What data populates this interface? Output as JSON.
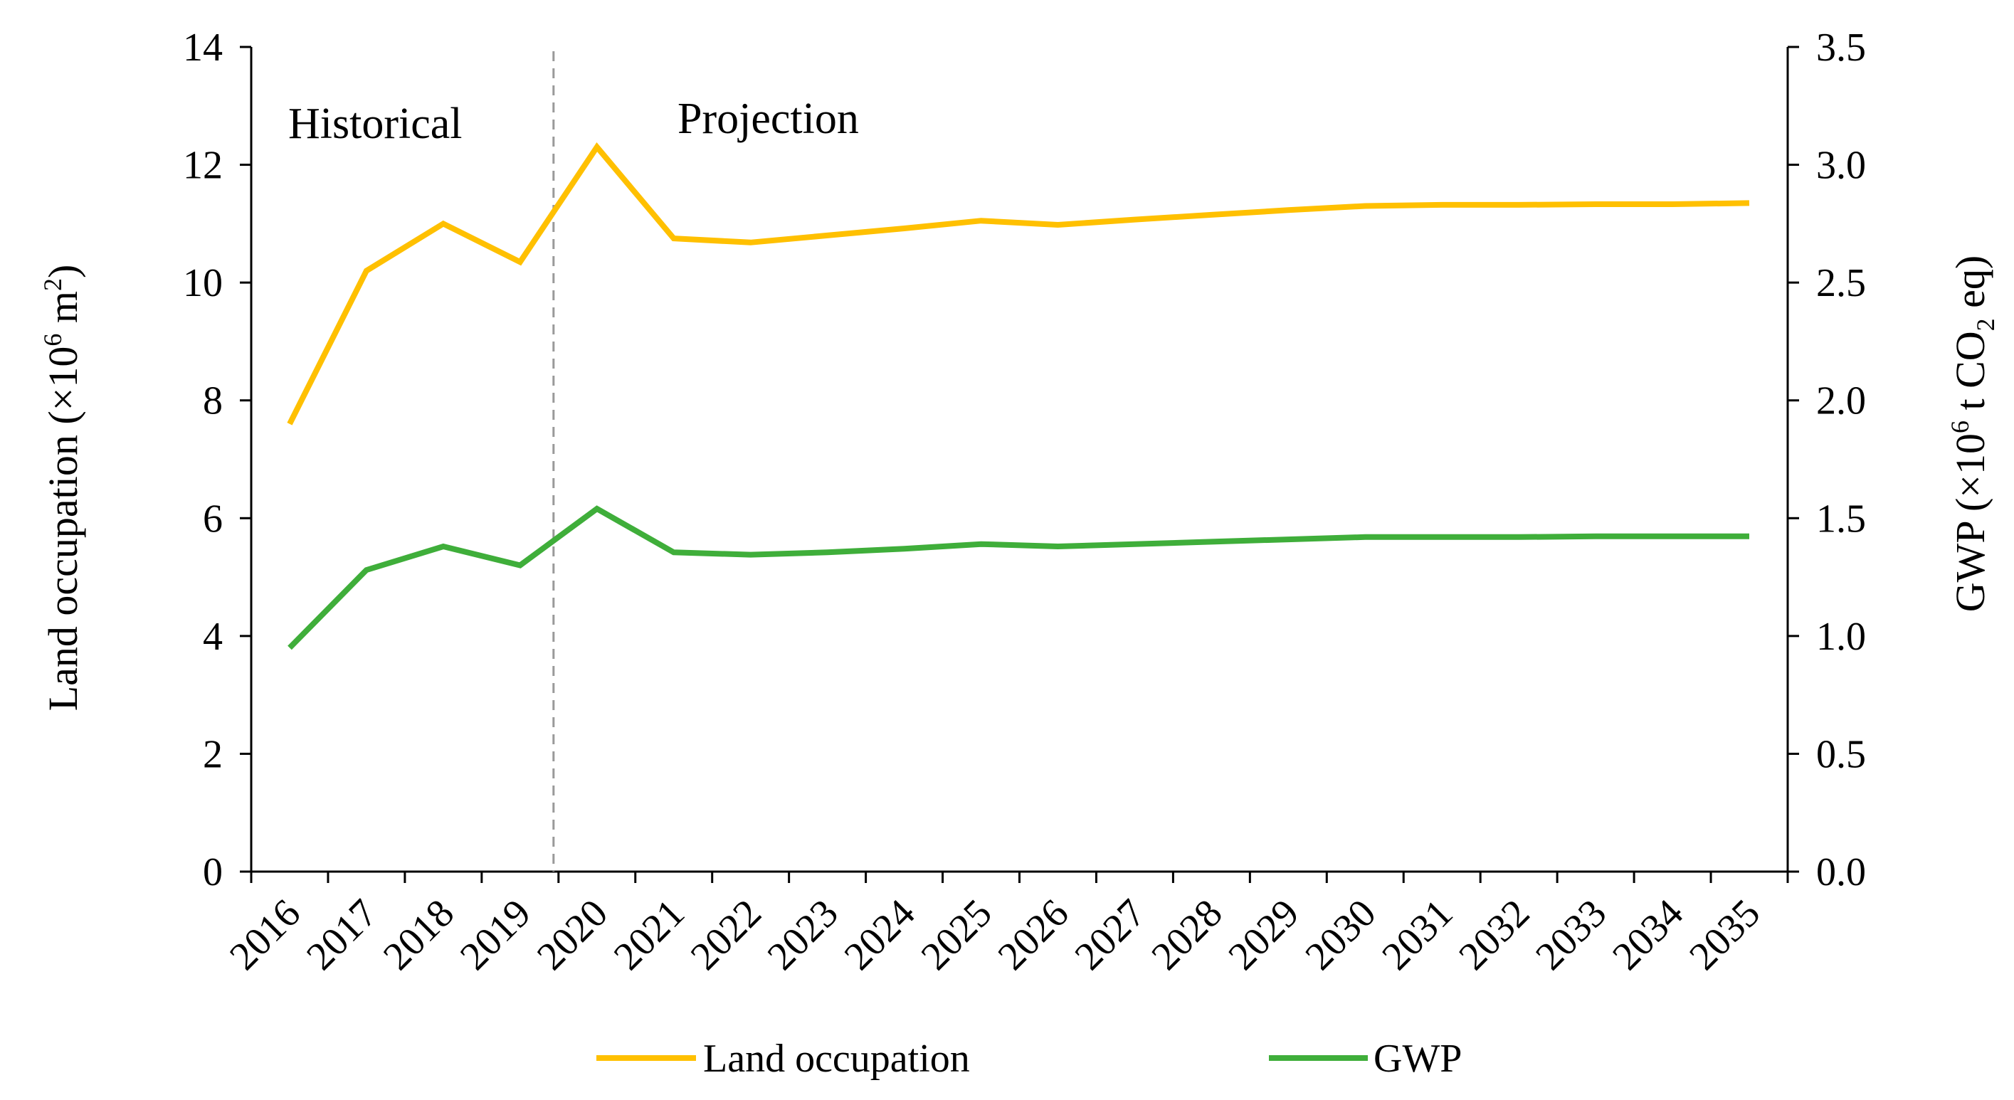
{
  "chart_data": {
    "type": "line",
    "title": "",
    "categories": [
      "2016",
      "2017",
      "2018",
      "2019",
      "2020",
      "2021",
      "2022",
      "2023",
      "2024",
      "2025",
      "2026",
      "2027",
      "2028",
      "2029",
      "2030",
      "2031",
      "2032",
      "2033",
      "2034",
      "2035"
    ],
    "series": [
      {
        "name": "Land occupation",
        "axis": "left",
        "color": "#FFC000",
        "values": [
          7.6,
          10.2,
          11.0,
          10.35,
          12.3,
          10.75,
          10.68,
          10.8,
          10.92,
          11.05,
          10.98,
          11.07,
          11.15,
          11.23,
          11.3,
          11.32,
          11.32,
          11.33,
          11.33,
          11.35
        ]
      },
      {
        "name": "GWP",
        "axis": "right",
        "color": "#3FAE3A",
        "values": [
          0.95,
          1.28,
          1.38,
          1.3,
          1.54,
          1.355,
          1.345,
          1.355,
          1.37,
          1.39,
          1.38,
          1.39,
          1.4,
          1.41,
          1.42,
          1.42,
          1.42,
          1.423,
          1.423,
          1.423
        ]
      }
    ],
    "left_axis": {
      "label_main": "Land occupation (×10",
      "label_sup": "6",
      "label_end": " m",
      "label_sup2": "2",
      "label_close": ")",
      "ylim": [
        0,
        14
      ],
      "ticks": [
        "0",
        "2",
        "4",
        "6",
        "8",
        "10",
        "12",
        "14"
      ]
    },
    "right_axis": {
      "label_main": "GWP (×10",
      "label_sup": "6",
      "label_mid": " t CO",
      "label_sub": "2",
      "label_end": " eq)",
      "ylim": [
        0.0,
        3.5
      ],
      "ticks": [
        "0.0",
        "0.5",
        "1.0",
        "1.5",
        "2.0",
        "2.5",
        "3.0",
        "3.5"
      ]
    },
    "annotations": {
      "historical": "Historical",
      "projection": "Projection",
      "divider_between": [
        "2019",
        "2020"
      ]
    },
    "legend": {
      "placement": "bottom",
      "items": [
        "Land occupation",
        "GWP"
      ]
    },
    "grid": false
  }
}
